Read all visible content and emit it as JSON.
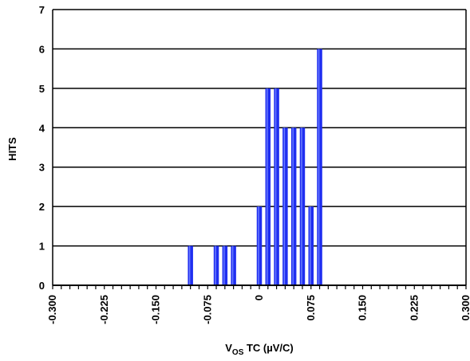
{
  "chart_data": {
    "type": "bar",
    "ylabel": "HITS",
    "xlabel_main": "V",
    "xlabel_sub": "OS",
    "xlabel_rest": " TC (µV/C)",
    "xlim": [
      -0.3,
      0.3
    ],
    "ylim": [
      0,
      7
    ],
    "x_ticks": [
      {
        "value": -0.3,
        "label": "-0.300"
      },
      {
        "value": -0.225,
        "label": "-0.225"
      },
      {
        "value": -0.15,
        "label": "-0.150"
      },
      {
        "value": -0.075,
        "label": "-0.075"
      },
      {
        "value": 0,
        "label": "0"
      },
      {
        "value": 0.075,
        "label": "0.075"
      },
      {
        "value": 0.15,
        "label": "0.150"
      },
      {
        "value": 0.225,
        "label": "0.225"
      },
      {
        "value": 0.3,
        "label": "0.300"
      }
    ],
    "y_ticks": [
      0,
      1,
      2,
      3,
      4,
      5,
      6,
      7
    ],
    "x_minor_step": 0.0125,
    "grid": "horizontal",
    "bar_color": "#1f2ef0",
    "bar_highlight": "#6a7cff",
    "bars": [
      {
        "x": -0.1,
        "value": 1
      },
      {
        "x": -0.0625,
        "value": 1
      },
      {
        "x": -0.05,
        "value": 1
      },
      {
        "x": -0.0375,
        "value": 1
      },
      {
        "x": 0,
        "value": 2
      },
      {
        "x": 0.0125,
        "value": 5
      },
      {
        "x": 0.025,
        "value": 5
      },
      {
        "x": 0.0375,
        "value": 4
      },
      {
        "x": 0.05,
        "value": 4
      },
      {
        "x": 0.0625,
        "value": 4
      },
      {
        "x": 0.075,
        "value": 2
      },
      {
        "x": 0.0875,
        "value": 6
      }
    ]
  }
}
